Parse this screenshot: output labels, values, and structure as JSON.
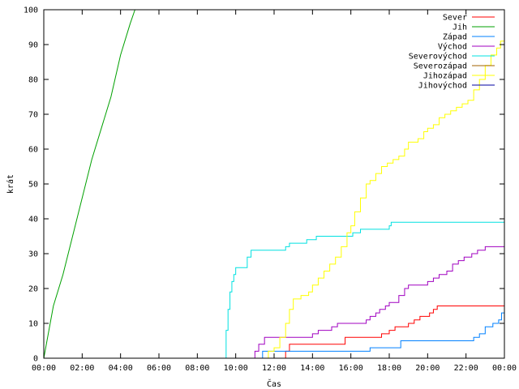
{
  "chart_data": {
    "type": "line",
    "xlabel": "Čas",
    "ylabel": "krát",
    "xlim": [
      0,
      24
    ],
    "ylim": [
      0,
      100
    ],
    "x_ticks": [
      0,
      2,
      4,
      6,
      8,
      10,
      12,
      14,
      16,
      18,
      20,
      22,
      24
    ],
    "x_tick_labels": [
      "00:00",
      "02:00",
      "04:00",
      "06:00",
      "08:00",
      "10:00",
      "12:00",
      "14:00",
      "16:00",
      "18:00",
      "20:00",
      "22:00",
      "00:00"
    ],
    "y_ticks": [
      0,
      10,
      20,
      30,
      40,
      50,
      60,
      70,
      80,
      90,
      100
    ],
    "y_tick_labels": [
      "0",
      "10",
      "20",
      "30",
      "40",
      "50",
      "60",
      "70",
      "80",
      "90",
      "100"
    ],
    "grid": false,
    "legend_position": "top-right",
    "series": [
      {
        "name": "Sever",
        "color": "#ff0000",
        "step": true,
        "points": [
          [
            12.5,
            0
          ],
          [
            12.6,
            2
          ],
          [
            12.8,
            4
          ],
          [
            15.5,
            4
          ],
          [
            15.7,
            6
          ],
          [
            17.3,
            6
          ],
          [
            17.6,
            7
          ],
          [
            18.0,
            8
          ],
          [
            18.3,
            9
          ],
          [
            18.8,
            9
          ],
          [
            19.0,
            10
          ],
          [
            19.3,
            11
          ],
          [
            19.6,
            12
          ],
          [
            20.1,
            13
          ],
          [
            20.3,
            14
          ],
          [
            20.5,
            15
          ],
          [
            24.0,
            15
          ]
        ]
      },
      {
        "name": "Jih",
        "color": "#00a000",
        "step": false,
        "points": [
          [
            0,
            0
          ],
          [
            0.5,
            15
          ],
          [
            1.0,
            24
          ],
          [
            1.5,
            35
          ],
          [
            2.0,
            46
          ],
          [
            2.5,
            57
          ],
          [
            3.0,
            66
          ],
          [
            3.5,
            75
          ],
          [
            4.0,
            87
          ],
          [
            4.5,
            96
          ],
          [
            4.75,
            100
          ]
        ]
      },
      {
        "name": "Západ",
        "color": "#0080ff",
        "step": true,
        "points": [
          [
            11.2,
            0
          ],
          [
            11.4,
            2
          ],
          [
            16.9,
            2
          ],
          [
            17.0,
            3
          ],
          [
            18.5,
            3
          ],
          [
            18.6,
            5
          ],
          [
            22.0,
            5
          ],
          [
            22.4,
            6
          ],
          [
            22.7,
            7
          ],
          [
            23.0,
            9
          ],
          [
            23.4,
            10
          ],
          [
            23.7,
            11
          ],
          [
            23.85,
            13
          ],
          [
            24.0,
            13
          ]
        ]
      },
      {
        "name": "Východ",
        "color": "#a000c0",
        "step": true,
        "points": [
          [
            10.9,
            0
          ],
          [
            11.0,
            2
          ],
          [
            11.2,
            4
          ],
          [
            11.5,
            6
          ],
          [
            13.8,
            6
          ],
          [
            14.0,
            7
          ],
          [
            14.3,
            8
          ],
          [
            15.0,
            9
          ],
          [
            15.3,
            10
          ],
          [
            16.5,
            10
          ],
          [
            16.8,
            11
          ],
          [
            17.0,
            12
          ],
          [
            17.3,
            13
          ],
          [
            17.5,
            14
          ],
          [
            17.8,
            15
          ],
          [
            18.0,
            16
          ],
          [
            18.5,
            18
          ],
          [
            18.8,
            20
          ],
          [
            19.0,
            21
          ],
          [
            20.0,
            22
          ],
          [
            20.3,
            23
          ],
          [
            20.6,
            24
          ],
          [
            21.0,
            25
          ],
          [
            21.3,
            27
          ],
          [
            21.6,
            28
          ],
          [
            21.9,
            29
          ],
          [
            22.3,
            30
          ],
          [
            22.6,
            31
          ],
          [
            23.0,
            32
          ],
          [
            24.0,
            32
          ]
        ]
      },
      {
        "name": "Severovýchod",
        "color": "#00e0e0",
        "step": true,
        "points": [
          [
            9.3,
            0
          ],
          [
            9.5,
            8
          ],
          [
            9.6,
            14
          ],
          [
            9.7,
            19
          ],
          [
            9.8,
            22
          ],
          [
            9.9,
            24
          ],
          [
            10.0,
            26
          ],
          [
            10.4,
            26
          ],
          [
            10.6,
            29
          ],
          [
            10.8,
            31
          ],
          [
            12.5,
            31
          ],
          [
            12.6,
            32
          ],
          [
            12.8,
            33
          ],
          [
            13.5,
            33
          ],
          [
            13.7,
            34
          ],
          [
            14.2,
            35
          ],
          [
            15.9,
            35
          ],
          [
            16.1,
            36
          ],
          [
            16.5,
            37
          ],
          [
            17.9,
            37
          ],
          [
            18.0,
            38
          ],
          [
            18.1,
            39
          ],
          [
            24.0,
            39
          ]
        ]
      },
      {
        "name": "Severozápad",
        "color": "#a06000",
        "step": true,
        "points": []
      },
      {
        "name": "Jihozápad",
        "color": "#ffff00",
        "step": true,
        "points": [
          [
            11.5,
            0
          ],
          [
            11.7,
            2
          ],
          [
            12.0,
            3
          ],
          [
            12.3,
            6
          ],
          [
            12.6,
            10
          ],
          [
            12.8,
            14
          ],
          [
            13.0,
            17
          ],
          [
            13.4,
            18
          ],
          [
            13.8,
            19
          ],
          [
            14.0,
            21
          ],
          [
            14.3,
            23
          ],
          [
            14.6,
            25
          ],
          [
            14.9,
            27
          ],
          [
            15.2,
            29
          ],
          [
            15.5,
            32
          ],
          [
            15.8,
            36
          ],
          [
            16.0,
            38
          ],
          [
            16.2,
            42
          ],
          [
            16.5,
            46
          ],
          [
            16.8,
            50
          ],
          [
            17.0,
            51
          ],
          [
            17.3,
            53
          ],
          [
            17.6,
            55
          ],
          [
            17.9,
            56
          ],
          [
            18.2,
            57
          ],
          [
            18.5,
            58
          ],
          [
            18.8,
            60
          ],
          [
            19.0,
            62
          ],
          [
            19.5,
            63
          ],
          [
            19.8,
            65
          ],
          [
            20.0,
            66
          ],
          [
            20.3,
            67
          ],
          [
            20.6,
            69
          ],
          [
            20.9,
            70
          ],
          [
            21.2,
            71
          ],
          [
            21.5,
            72
          ],
          [
            21.8,
            73
          ],
          [
            22.1,
            74
          ],
          [
            22.4,
            77
          ],
          [
            22.7,
            80
          ],
          [
            23.0,
            84
          ],
          [
            23.3,
            87
          ],
          [
            23.6,
            89
          ],
          [
            23.8,
            91
          ],
          [
            24.0,
            93
          ]
        ]
      },
      {
        "name": "Jihovýchod",
        "color": "#0000a0",
        "step": true,
        "points": []
      }
    ]
  }
}
